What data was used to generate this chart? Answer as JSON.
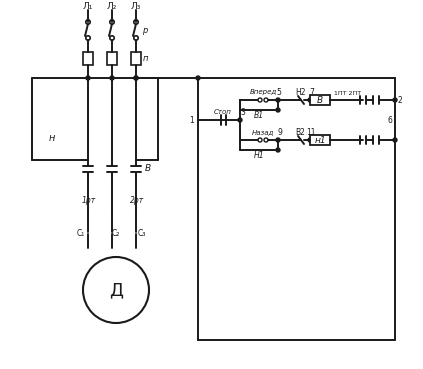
{
  "bg_color": "#ffffff",
  "line_color": "#1a1a1a",
  "line_width": 1.4,
  "labels": {
    "L1": "Л₁",
    "L2": "Л₂",
    "L3": "Л₃",
    "P": "р",
    "Q": "п",
    "H": "н",
    "B": "В",
    "B1": "В1",
    "H1": "Н1",
    "B2": "В2",
    "N1": "н1",
    "Stop": "Стоп",
    "Vpered": "Вперед",
    "Nazad": "Назад",
    "1RT": "1рт",
    "2RT": "2рт",
    "1PT": "1ПТ",
    "2PT": "2ПТ",
    "N2": "Н2",
    "D": "Д",
    "C1": "С₁",
    "C2": "С₂",
    "C3": "С₃",
    "num1": "1",
    "num2": "2",
    "num3": "3",
    "num5": "5",
    "num6": "6",
    "num7": "7",
    "num9": "9",
    "num11": "11"
  }
}
